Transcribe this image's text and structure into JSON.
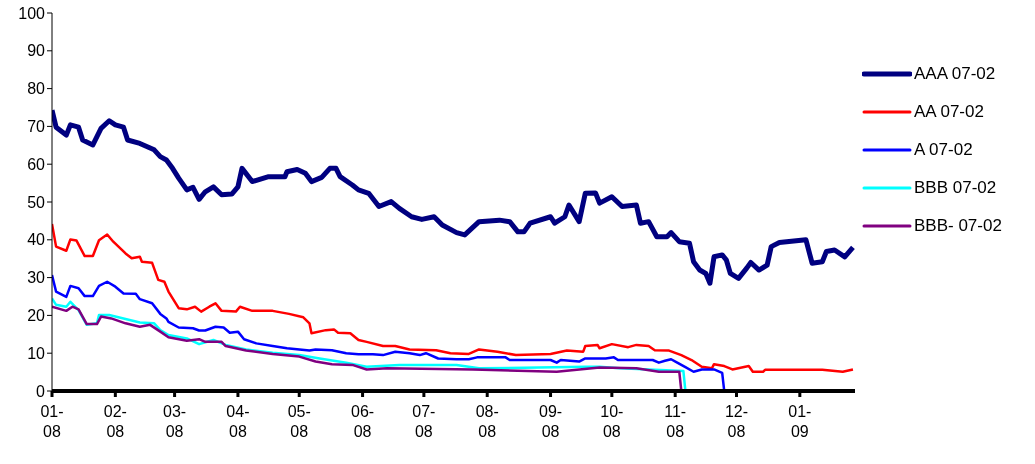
{
  "chart_data": {
    "type": "line",
    "xlim": [
      "2008-01-01",
      "2009-01-28"
    ],
    "ylim": [
      0,
      100
    ],
    "yticks": [
      0,
      10,
      20,
      30,
      40,
      50,
      60,
      70,
      80,
      90,
      100
    ],
    "xticks": [
      {
        "value": "2008-01-01",
        "label": "01-08"
      },
      {
        "value": "2008-02-01",
        "label": "02-08"
      },
      {
        "value": "2008-03-01",
        "label": "03-08"
      },
      {
        "value": "2008-04-01",
        "label": "04-08"
      },
      {
        "value": "2008-05-01",
        "label": "05-08"
      },
      {
        "value": "2008-06-01",
        "label": "06-08"
      },
      {
        "value": "2008-07-01",
        "label": "07-08"
      },
      {
        "value": "2008-08-01",
        "label": "08-08"
      },
      {
        "value": "2008-09-01",
        "label": "09-08"
      },
      {
        "value": "2008-10-01",
        "label": "10-08"
      },
      {
        "value": "2008-11-01",
        "label": "11-08"
      },
      {
        "value": "2008-12-01",
        "label": "12-08"
      },
      {
        "value": "2009-01-01",
        "label": "01-09"
      }
    ],
    "grid": false,
    "legend": "right",
    "marker": "none",
    "line_style": "solid",
    "series": [
      {
        "name": "AAA 07-02",
        "color": "#000080",
        "x": [
          "2008-01-01",
          "2008-01-03",
          "2008-01-08",
          "2008-01-10",
          "2008-01-14",
          "2008-01-16",
          "2008-01-21",
          "2008-01-25",
          "2008-01-29",
          "2008-02-01",
          "2008-02-05",
          "2008-02-07",
          "2008-02-13",
          "2008-02-20",
          "2008-02-23",
          "2008-02-26",
          "2008-02-29",
          "2008-03-03",
          "2008-03-07",
          "2008-03-10",
          "2008-03-13",
          "2008-03-16",
          "2008-03-20",
          "2008-03-24",
          "2008-03-29",
          "2008-04-01",
          "2008-04-03",
          "2008-04-08",
          "2008-04-16",
          "2008-04-24",
          "2008-04-25",
          "2008-04-30",
          "2008-05-04",
          "2008-05-07",
          "2008-05-12",
          "2008-05-16",
          "2008-05-19",
          "2008-05-21",
          "2008-05-27",
          "2008-05-30",
          "2008-06-04",
          "2008-06-09",
          "2008-06-15",
          "2008-06-19",
          "2008-06-25",
          "2008-06-30",
          "2008-07-06",
          "2008-07-10",
          "2008-07-17",
          "2008-07-21",
          "2008-07-28",
          "2008-08-07",
          "2008-08-12",
          "2008-08-16",
          "2008-08-19",
          "2008-08-22",
          "2008-09-01",
          "2008-09-03",
          "2008-09-08",
          "2008-09-10",
          "2008-09-15",
          "2008-09-18",
          "2008-09-23",
          "2008-09-25",
          "2008-10-01",
          "2008-10-06",
          "2008-10-13",
          "2008-10-15",
          "2008-10-19",
          "2008-10-23",
          "2008-10-28",
          "2008-10-30",
          "2008-11-03",
          "2008-11-08",
          "2008-11-10",
          "2008-11-13",
          "2008-11-16",
          "2008-11-18",
          "2008-11-20",
          "2008-11-24",
          "2008-11-26",
          "2008-11-28",
          "2008-12-02",
          "2008-12-06",
          "2008-12-08",
          "2008-12-12",
          "2008-12-16",
          "2008-12-18",
          "2008-12-22",
          "2009-01-04",
          "2009-01-07",
          "2009-01-12",
          "2009-01-14",
          "2009-01-18",
          "2009-01-23",
          "2009-01-27"
        ],
        "values": [
          74.3,
          69.8,
          67.7,
          70.4,
          69.8,
          66.4,
          65.1,
          69.5,
          71.5,
          70.4,
          69.8,
          66.4,
          65.5,
          63.8,
          62,
          61.1,
          58.9,
          56.3,
          53.2,
          53.9,
          50.7,
          52.7,
          54,
          51.9,
          52.1,
          54,
          58.9,
          55.4,
          56.7,
          56.7,
          58,
          58.6,
          57.6,
          55.4,
          56.5,
          58.9,
          58.9,
          56.7,
          54.5,
          53.2,
          52.3,
          48.8,
          50.1,
          48.3,
          46.1,
          45.4,
          46.1,
          43.9,
          41.9,
          41.3,
          44.8,
          45.2,
          44.8,
          42.1,
          42.1,
          44.4,
          46.1,
          44.4,
          46.1,
          49.2,
          44.8,
          52.3,
          52.4,
          49.7,
          51.4,
          48.8,
          49.2,
          44.4,
          44.8,
          40.8,
          40.8,
          41.9,
          39.5,
          39.1,
          34.2,
          32,
          31.1,
          28.5,
          35.5,
          36,
          34.7,
          31.1,
          29.8,
          32.5,
          34,
          32,
          33.3,
          38.2,
          39.3,
          40,
          33.8,
          34.2,
          36.9,
          37.3,
          35.5,
          38
        ]
      },
      {
        "name": "AA 07-02",
        "color": "#ff0000",
        "x": [
          "2008-01-01",
          "2008-01-03",
          "2008-01-08",
          "2008-01-10",
          "2008-01-13",
          "2008-01-17",
          "2008-01-21",
          "2008-01-24",
          "2008-01-28",
          "2008-01-31",
          "2008-02-06",
          "2008-02-09",
          "2008-02-13",
          "2008-02-14",
          "2008-02-19",
          "2008-02-22",
          "2008-02-25",
          "2008-02-27",
          "2008-03-03",
          "2008-03-07",
          "2008-03-11",
          "2008-03-14",
          "2008-03-18",
          "2008-03-21",
          "2008-03-24",
          "2008-03-31",
          "2008-04-02",
          "2008-04-08",
          "2008-04-18",
          "2008-04-26",
          "2008-05-03",
          "2008-05-06",
          "2008-05-07",
          "2008-05-14",
          "2008-05-18",
          "2008-05-20",
          "2008-05-26",
          "2008-05-30",
          "2008-06-03",
          "2008-06-11",
          "2008-06-17",
          "2008-06-24",
          "2008-07-07",
          "2008-07-14",
          "2008-07-23",
          "2008-07-28",
          "2008-08-06",
          "2008-08-15",
          "2008-09-01",
          "2008-09-09",
          "2008-09-17",
          "2008-09-18",
          "2008-09-24",
          "2008-09-25",
          "2008-10-01",
          "2008-10-09",
          "2008-10-13",
          "2008-10-19",
          "2008-10-22",
          "2008-10-29",
          "2008-11-04",
          "2008-11-09",
          "2008-11-14",
          "2008-11-19",
          "2008-11-20",
          "2008-11-25",
          "2008-11-29",
          "2008-12-07",
          "2008-12-09",
          "2008-12-14",
          "2008-12-15",
          "2009-01-12",
          "2009-01-22",
          "2009-01-27"
        ],
        "values": [
          44.2,
          38.2,
          37.1,
          40.1,
          39.8,
          35.7,
          35.7,
          39.9,
          41.4,
          39.5,
          36.4,
          35.1,
          35.5,
          34.2,
          33.9,
          29.4,
          28.9,
          26.3,
          21.9,
          21.6,
          22.3,
          21,
          22.3,
          23.2,
          21.2,
          21,
          22.3,
          21.2,
          21.2,
          20.4,
          19.5,
          17.9,
          15.3,
          16.1,
          16.3,
          15.4,
          15.3,
          13.5,
          13,
          11.9,
          11.9,
          11,
          10.8,
          10,
          9.8,
          11,
          10.4,
          9.5,
          9.8,
          10.7,
          10.4,
          11.9,
          12.2,
          11.3,
          12.4,
          11.6,
          12.2,
          11.9,
          10.8,
          10.7,
          9.5,
          8.2,
          6.4,
          6,
          7.1,
          6.6,
          5.7,
          6.6,
          5.1,
          5.1,
          5.6,
          5.6,
          5.1,
          5.7
        ]
      },
      {
        "name": "A 07-02",
        "color": "#0000ff",
        "x": [
          "2008-01-01",
          "2008-01-03",
          "2008-01-08",
          "2008-01-10",
          "2008-01-14",
          "2008-01-17",
          "2008-01-21",
          "2008-01-24",
          "2008-01-28",
          "2008-02-01",
          "2008-02-05",
          "2008-02-11",
          "2008-02-13",
          "2008-02-19",
          "2008-02-23",
          "2008-02-26",
          "2008-02-27",
          "2008-03-03",
          "2008-03-10",
          "2008-03-13",
          "2008-03-16",
          "2008-03-21",
          "2008-03-25",
          "2008-03-28",
          "2008-04-01",
          "2008-04-04",
          "2008-04-10",
          "2008-04-18",
          "2008-04-25",
          "2008-05-06",
          "2008-05-09",
          "2008-05-17",
          "2008-05-24",
          "2008-05-30",
          "2008-06-06",
          "2008-06-11",
          "2008-06-17",
          "2008-06-24",
          "2008-06-29",
          "2008-07-02",
          "2008-07-08",
          "2008-07-17",
          "2008-07-23",
          "2008-07-27",
          "2008-08-10",
          "2008-08-12",
          "2008-09-01",
          "2008-09-04",
          "2008-09-06",
          "2008-09-15",
          "2008-09-18",
          "2008-09-28",
          "2008-10-02",
          "2008-10-04",
          "2008-10-21",
          "2008-10-24",
          "2008-10-27",
          "2008-10-30",
          "2008-11-02",
          "2008-11-06",
          "2008-11-10",
          "2008-11-14",
          "2008-11-20",
          "2008-11-24",
          "2008-11-25"
        ],
        "values": [
          30.7,
          26.3,
          24.9,
          27.8,
          27.2,
          25.1,
          25.1,
          27.8,
          28.9,
          27.6,
          25.8,
          25.7,
          24.3,
          23.2,
          20.4,
          19.2,
          18.3,
          16.8,
          16.6,
          16,
          16,
          17,
          16.8,
          15.4,
          15.7,
          13.7,
          12.6,
          11.9,
          11.3,
          10.7,
          11,
          10.8,
          10,
          9.7,
          9.7,
          9.5,
          10.4,
          10,
          9.5,
          10,
          8.6,
          8.4,
          8.4,
          8.9,
          8.9,
          8.2,
          8.2,
          7.5,
          8.2,
          7.8,
          8.6,
          8.6,
          8.9,
          8.2,
          8.2,
          7.5,
          8,
          8.4,
          7.5,
          6.3,
          5.1,
          5.7,
          5.7,
          4.8,
          0
        ]
      },
      {
        "name": "BBB 07-02",
        "color": "#00ffff",
        "x": [
          "2008-01-01",
          "2008-01-03",
          "2008-01-08",
          "2008-01-10",
          "2008-01-14",
          "2008-01-18",
          "2008-01-23",
          "2008-01-24",
          "2008-01-29",
          "2008-02-05",
          "2008-02-13",
          "2008-02-20",
          "2008-02-23",
          "2008-02-27",
          "2008-03-07",
          "2008-03-13",
          "2008-03-20",
          "2008-03-26",
          "2008-04-05",
          "2008-04-18",
          "2008-05-01",
          "2008-05-11",
          "2008-05-24",
          "2008-06-03",
          "2008-06-19",
          "2008-07-17",
          "2008-07-28",
          "2008-09-18",
          "2008-09-25",
          "2008-10-05",
          "2008-11-05",
          "2008-11-06"
        ],
        "values": [
          24.5,
          22.8,
          22.3,
          23.6,
          21.4,
          17.5,
          17.9,
          20.1,
          20.1,
          19.2,
          18.1,
          17.9,
          16.1,
          14.8,
          13.9,
          12.4,
          13.5,
          12.2,
          11,
          10.1,
          9.5,
          8.6,
          7.5,
          6.4,
          6.9,
          6.9,
          6,
          6.4,
          6.4,
          6,
          5.3,
          0
        ]
      },
      {
        "name": "BBB- 07-02",
        "color": "#800080",
        "x": [
          "2008-01-01",
          "2008-01-08",
          "2008-01-11",
          "2008-01-14",
          "2008-01-18",
          "2008-01-23",
          "2008-01-25",
          "2008-01-30",
          "2008-02-06",
          "2008-02-13",
          "2008-02-18",
          "2008-02-23",
          "2008-02-27",
          "2008-03-07",
          "2008-03-13",
          "2008-03-16",
          "2008-03-24",
          "2008-03-26",
          "2008-04-05",
          "2008-04-18",
          "2008-05-01",
          "2008-05-09",
          "2008-05-17",
          "2008-05-27",
          "2008-06-03",
          "2008-06-13",
          "2008-07-25",
          "2008-09-04",
          "2008-09-25",
          "2008-10-13",
          "2008-10-24",
          "2008-11-03",
          "2008-11-04",
          "2009-01-27"
        ],
        "values": [
          22.3,
          21.2,
          22.3,
          21.6,
          17.7,
          17.7,
          19.7,
          19.2,
          17.9,
          17,
          17.5,
          15.7,
          14.2,
          13.3,
          13.7,
          13,
          13,
          11.9,
          10.7,
          9.8,
          9.1,
          7.8,
          7.1,
          6.9,
          5.7,
          6,
          5.7,
          5.1,
          6.2,
          6,
          5.1,
          5.1,
          0,
          0
        ]
      }
    ]
  }
}
